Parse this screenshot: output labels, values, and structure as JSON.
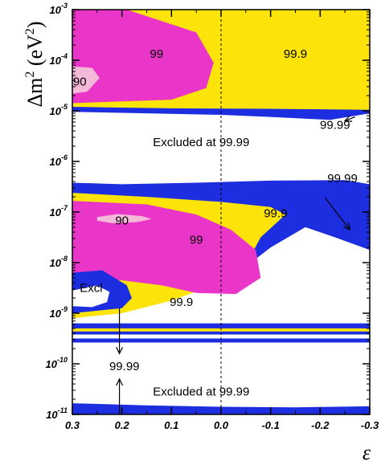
{
  "chart_data": {
    "type": "contour",
    "xlabel": "ε",
    "ylabel_main": "Δm",
    "ylabel_sup": "2",
    "ylabel_unit": " (eV",
    "ylabel_unit_sup": "2",
    "ylabel_close": ")",
    "xlim": [
      0.3,
      -0.3
    ],
    "ylim_log10": [
      -11,
      -3
    ],
    "y_scale": "log",
    "x_ticks": [
      {
        "value": 0.3,
        "label": "0.3"
      },
      {
        "value": 0.2,
        "label": "0.2"
      },
      {
        "value": 0.1,
        "label": "0.1"
      },
      {
        "value": 0.0,
        "label": "0.0"
      },
      {
        "value": -0.1,
        "label": "-0.1"
      },
      {
        "value": -0.2,
        "label": "-0.2"
      },
      {
        "value": -0.3,
        "label": "-0.3"
      }
    ],
    "y_ticks": [
      {
        "exp": -3,
        "base": "10",
        "power": "-3"
      },
      {
        "exp": -4,
        "base": "10",
        "power": "-4"
      },
      {
        "exp": -5,
        "base": "10",
        "power": "-5"
      },
      {
        "exp": -6,
        "base": "10",
        "power": "-6"
      },
      {
        "exp": -7,
        "base": "10",
        "power": "-7"
      },
      {
        "exp": -8,
        "base": "10",
        "power": "-8"
      },
      {
        "exp": -9,
        "base": "10",
        "power": "-9"
      },
      {
        "exp": -10,
        "base": "10",
        "power": "-10"
      },
      {
        "exp": -11,
        "base": "10",
        "power": "-11"
      }
    ],
    "reference_line_x": 0.0,
    "colors": {
      "cl90": "#f4b8d8",
      "cl99": "#ea36c8",
      "cl999": "#fce40a",
      "cl9999": "#1c2ee0",
      "excluded": "#ffffff"
    },
    "regions": [
      {
        "level": "99.99",
        "polygon": [
          [
            0.3,
            -3.0
          ],
          [
            -0.3,
            -3.0
          ],
          [
            -0.3,
            -5.05
          ],
          [
            -0.22,
            -5.18
          ],
          [
            -0.1,
            -5.12
          ],
          [
            0.0,
            -5.08
          ],
          [
            0.15,
            -5.05
          ],
          [
            0.3,
            -5.02
          ]
        ]
      },
      {
        "level": "99.9",
        "polygon": [
          [
            0.3,
            -3.0
          ],
          [
            -0.3,
            -3.0
          ],
          [
            -0.3,
            -4.98
          ],
          [
            -0.1,
            -4.96
          ],
          [
            0.1,
            -4.95
          ],
          [
            0.3,
            -4.92
          ]
        ]
      },
      {
        "level": "99",
        "polygon": [
          [
            0.3,
            -3.0
          ],
          [
            0.19,
            -3.0
          ],
          [
            0.05,
            -3.45
          ],
          [
            0.015,
            -4.05
          ],
          [
            0.03,
            -4.55
          ],
          [
            0.1,
            -4.78
          ],
          [
            0.3,
            -4.85
          ]
        ]
      },
      {
        "level": "90",
        "polygon": [
          [
            0.3,
            -4.12
          ],
          [
            0.26,
            -4.15
          ],
          [
            0.245,
            -4.35
          ],
          [
            0.27,
            -4.62
          ],
          [
            0.3,
            -4.66
          ]
        ]
      },
      {
        "level": "99.99",
        "polygon": [
          [
            0.3,
            -6.42
          ],
          [
            0.2,
            -6.45
          ],
          [
            0.05,
            -6.42
          ],
          [
            -0.1,
            -6.38
          ],
          [
            -0.25,
            -6.37
          ],
          [
            -0.3,
            -6.45
          ],
          [
            -0.3,
            -7.75
          ],
          [
            -0.23,
            -7.5
          ],
          [
            -0.17,
            -7.3
          ],
          [
            -0.1,
            -7.7
          ],
          [
            -0.05,
            -8.08
          ],
          [
            0.0,
            -8.15
          ],
          [
            0.1,
            -8.4
          ],
          [
            0.2,
            -8.65
          ],
          [
            0.3,
            -8.8
          ]
        ]
      },
      {
        "level": "99.9",
        "polygon": [
          [
            0.3,
            -6.62
          ],
          [
            0.15,
            -6.7
          ],
          [
            0.0,
            -6.8
          ],
          [
            -0.1,
            -6.9
          ],
          [
            -0.13,
            -7.05
          ],
          [
            -0.08,
            -7.5
          ],
          [
            -0.05,
            -8.05
          ],
          [
            0.0,
            -8.4
          ],
          [
            0.1,
            -8.75
          ],
          [
            0.2,
            -9.0
          ],
          [
            0.3,
            -9.1
          ]
        ]
      },
      {
        "level": "99",
        "polygon": [
          [
            0.3,
            -6.78
          ],
          [
            0.15,
            -6.85
          ],
          [
            0.05,
            -7.05
          ],
          [
            -0.02,
            -7.35
          ],
          [
            -0.07,
            -7.75
          ],
          [
            -0.08,
            -8.3
          ],
          [
            -0.03,
            -8.62
          ],
          [
            0.05,
            -8.6
          ],
          [
            0.12,
            -8.45
          ],
          [
            0.2,
            -8.35
          ],
          [
            0.3,
            -8.3
          ]
        ]
      },
      {
        "level": "90",
        "polygon": [
          [
            0.25,
            -7.1
          ],
          [
            0.21,
            -7.04
          ],
          [
            0.16,
            -7.08
          ],
          [
            0.14,
            -7.14
          ],
          [
            0.17,
            -7.2
          ],
          [
            0.22,
            -7.22
          ],
          [
            0.25,
            -7.17
          ]
        ]
      },
      {
        "level": "99.99",
        "polygon": [
          [
            0.3,
            -8.2
          ],
          [
            0.24,
            -8.15
          ],
          [
            0.19,
            -8.45
          ],
          [
            0.18,
            -8.7
          ],
          [
            0.2,
            -8.9
          ],
          [
            0.3,
            -9.0
          ]
        ]
      },
      {
        "level": "excluded",
        "polygon": [
          [
            0.3,
            -8.55
          ],
          [
            0.25,
            -8.45
          ],
          [
            0.225,
            -8.58
          ],
          [
            0.23,
            -8.78
          ],
          [
            0.26,
            -8.88
          ],
          [
            0.3,
            -8.86
          ]
        ]
      },
      {
        "level": "99.99",
        "polygon": [
          [
            0.3,
            -9.2
          ],
          [
            -0.3,
            -9.2
          ],
          [
            -0.3,
            -9.42
          ],
          [
            0.3,
            -9.42
          ]
        ]
      },
      {
        "level": "99.9",
        "polygon": [
          [
            0.3,
            -9.3
          ],
          [
            -0.3,
            -9.3
          ],
          [
            -0.3,
            -9.36
          ],
          [
            0.3,
            -9.36
          ]
        ]
      },
      {
        "level": "99.99",
        "polygon": [
          [
            0.3,
            -9.5
          ],
          [
            -0.3,
            -9.5
          ],
          [
            -0.3,
            -9.58
          ],
          [
            0.3,
            -9.58
          ]
        ]
      },
      {
        "level": "99.99",
        "polygon": [
          [
            0.3,
            -10.78
          ],
          [
            0.15,
            -10.82
          ],
          [
            0.0,
            -10.85
          ],
          [
            -0.15,
            -10.86
          ],
          [
            -0.3,
            -10.84
          ],
          [
            -0.3,
            -11.0
          ],
          [
            0.3,
            -11.0
          ]
        ]
      }
    ],
    "annotations": [
      {
        "text": "99",
        "x": 0.13,
        "y": -3.87,
        "anchor": "middle"
      },
      {
        "text": "99.9",
        "x": -0.15,
        "y": -3.87,
        "anchor": "middle"
      },
      {
        "text": "90",
        "x": 0.285,
        "y": -4.42,
        "anchor": "middle"
      },
      {
        "text": "99.99",
        "x": -0.23,
        "y": -5.28,
        "anchor": "middle"
      },
      {
        "text": "Excluded at 99.99",
        "x": 0.04,
        "y": -5.62,
        "anchor": "middle"
      },
      {
        "text": "99.99",
        "x": -0.245,
        "y": -6.33,
        "anchor": "middle"
      },
      {
        "text": "99.9",
        "x": -0.11,
        "y": -7.02,
        "anchor": "middle"
      },
      {
        "text": "90",
        "x": 0.2,
        "y": -7.17,
        "anchor": "middle"
      },
      {
        "text": "99",
        "x": 0.05,
        "y": -7.55,
        "anchor": "middle"
      },
      {
        "text": "Excl",
        "x": 0.285,
        "y": -8.5,
        "anchor": "start"
      },
      {
        "text": "99.9",
        "x": 0.08,
        "y": -8.78,
        "anchor": "middle"
      },
      {
        "text": "99.99",
        "x": 0.195,
        "y": -10.05,
        "anchor": "middle"
      },
      {
        "text": "Excluded at 99.99",
        "x": 0.04,
        "y": -10.55,
        "anchor": "middle"
      }
    ],
    "arrows": [
      {
        "from": [
          -0.27,
          -5.12
        ],
        "to": [
          -0.25,
          -5.2
        ]
      },
      {
        "from": [
          -0.21,
          -6.72
        ],
        "to": [
          -0.26,
          -7.35
        ]
      },
      {
        "from": [
          0.205,
          -8.9
        ],
        "to": [
          0.205,
          -9.8
        ]
      },
      {
        "from": [
          0.205,
          -11.0
        ],
        "to": [
          0.205,
          -10.3
        ]
      }
    ]
  }
}
